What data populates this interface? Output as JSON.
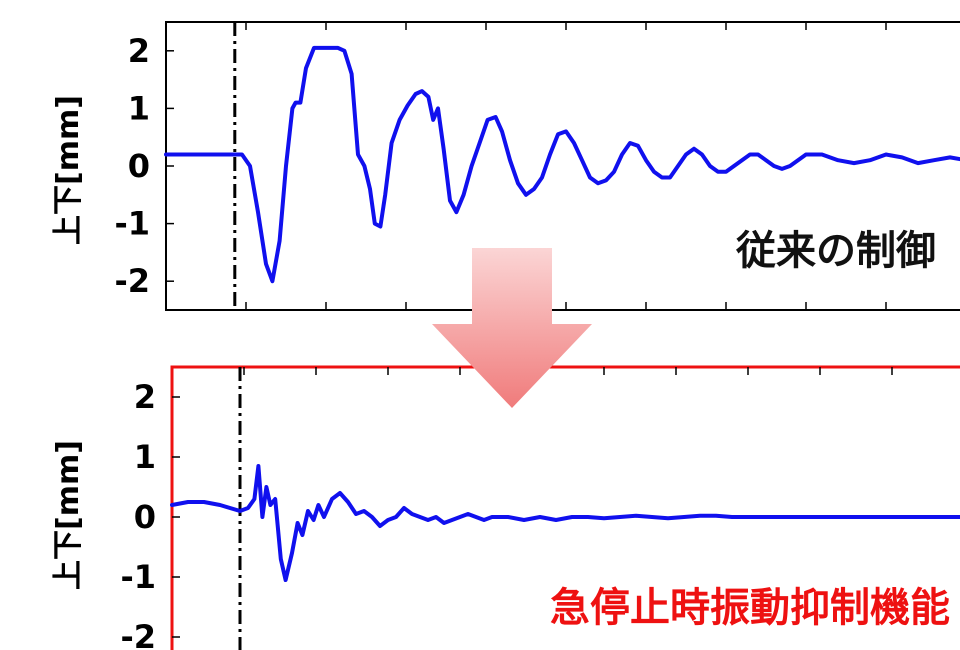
{
  "colors": {
    "series": "#1010ee",
    "axis": "#000000",
    "highlight_frame": "#ee1111",
    "caption_top": "#111111",
    "caption_bottom": "#ee1111",
    "arrow_top": "#fbd5d5",
    "arrow_bottom": "#f07b7b"
  },
  "arrow": {
    "icon": "down-arrow-icon",
    "direction": "down"
  },
  "chart_data": [
    {
      "type": "line",
      "title": "",
      "caption": "従来の制御",
      "ylabel": "上下[mm]",
      "xlabel": "",
      "ylim": [
        -2.5,
        2.5
      ],
      "xlim": [
        0,
        100
      ],
      "yticks": [
        "2",
        "1",
        "0",
        "-1",
        "-2"
      ],
      "ytick_values": [
        2,
        1,
        0,
        -1,
        -2
      ],
      "xtick_values": [
        10,
        20,
        30,
        40,
        50,
        60,
        70,
        80,
        90
      ],
      "event_marker_x": 8.6,
      "highlighted": false,
      "grid": false,
      "series": [
        {
          "x": [
            0,
            2,
            4,
            6,
            8.5,
            9.5,
            10.5,
            11.5,
            12.5,
            13.3,
            14.2,
            15,
            15.8,
            16.2,
            16.8,
            17.5,
            18.5,
            19.5,
            20.5,
            21.5,
            22.3,
            23.2,
            24.0,
            24.8,
            25.5,
            26.1,
            26.8,
            27.4,
            28.2,
            29.2,
            30.2,
            31.2,
            32.0,
            32.8,
            33.4,
            34.0,
            34.7,
            35.5,
            36.3,
            37.2,
            38.2,
            39.2,
            40.2,
            41.2,
            42.0,
            43.0,
            44.0,
            45.0,
            46.0,
            47.0,
            48.0,
            49.0,
            50.0,
            51.0,
            52.0,
            53.0,
            54.0,
            55.0,
            56.0,
            57.0,
            58.0,
            59.0,
            60.0,
            61.0,
            62.0,
            63.0,
            64.0,
            65.0,
            66.0,
            67.0,
            68.0,
            69.0,
            70.0,
            71.0,
            72.0,
            73.0,
            74.0,
            75.0,
            76.0,
            77.0,
            78.0,
            80.0,
            82.0,
            84.0,
            86.0,
            88.0,
            90.0,
            92.0,
            94.0,
            96.0,
            98.0,
            100.0
          ],
          "y": [
            0.2,
            0.2,
            0.2,
            0.2,
            0.2,
            0.2,
            0.0,
            -0.8,
            -1.7,
            -2.0,
            -1.3,
            0.0,
            1.0,
            1.1,
            1.1,
            1.7,
            2.05,
            2.05,
            2.05,
            2.05,
            2.0,
            1.6,
            0.2,
            0.0,
            -0.4,
            -1.0,
            -1.05,
            -0.5,
            0.4,
            0.8,
            1.05,
            1.25,
            1.3,
            1.2,
            0.8,
            1.0,
            0.3,
            -0.6,
            -0.8,
            -0.5,
            0.0,
            0.4,
            0.8,
            0.85,
            0.6,
            0.1,
            -0.3,
            -0.5,
            -0.4,
            -0.2,
            0.2,
            0.55,
            0.6,
            0.4,
            0.1,
            -0.2,
            -0.3,
            -0.25,
            -0.1,
            0.2,
            0.4,
            0.35,
            0.1,
            -0.1,
            -0.2,
            -0.2,
            0.0,
            0.2,
            0.3,
            0.2,
            0.0,
            -0.1,
            -0.1,
            0.0,
            0.1,
            0.2,
            0.2,
            0.1,
            0.0,
            -0.05,
            0.0,
            0.2,
            0.2,
            0.1,
            0.05,
            0.1,
            0.2,
            0.15,
            0.05,
            0.1,
            0.15,
            0.1
          ]
        }
      ]
    },
    {
      "type": "line",
      "title": "",
      "caption": "急停止時振動抑制機能",
      "ylabel": "上下[mm]",
      "xlabel": "",
      "ylim": [
        -2.5,
        2.5
      ],
      "xlim": [
        0,
        100
      ],
      "yticks": [
        "2",
        "1",
        "0",
        "-1",
        "-2"
      ],
      "ytick_values": [
        2,
        1,
        0,
        -1,
        -2
      ],
      "xtick_values": [
        9,
        18,
        27,
        36,
        45,
        54,
        63,
        72,
        81,
        90
      ],
      "event_marker_x": 8.5,
      "highlighted": true,
      "grid": false,
      "series": [
        {
          "x": [
            0,
            2,
            4,
            6,
            8.5,
            9.5,
            10.3,
            10.8,
            11.3,
            11.8,
            12.3,
            12.9,
            13.6,
            14.2,
            15.0,
            15.7,
            16.3,
            17.0,
            17.7,
            18.3,
            19.0,
            20.0,
            21.0,
            22.0,
            23.0,
            24.0,
            25.0,
            26.0,
            27.0,
            28.0,
            29.0,
            30.0,
            31.0,
            32.0,
            33.0,
            34.0,
            35.0,
            36.0,
            37.0,
            38.0,
            39.0,
            40.0,
            42.0,
            44.0,
            46.0,
            48.0,
            50.0,
            52.0,
            54.0,
            56.0,
            58.0,
            60.0,
            62.0,
            64.0,
            66.0,
            68.0,
            70.0,
            72.0,
            74.0,
            76.0,
            78.0,
            80.0,
            85.0,
            90.0,
            95.0,
            100.0
          ],
          "y": [
            0.2,
            0.25,
            0.25,
            0.2,
            0.1,
            0.15,
            0.3,
            0.85,
            0.0,
            0.5,
            0.2,
            0.3,
            -0.7,
            -1.05,
            -0.6,
            -0.1,
            -0.3,
            0.1,
            -0.05,
            0.2,
            0.0,
            0.3,
            0.4,
            0.25,
            0.05,
            0.1,
            0.0,
            -0.15,
            -0.05,
            0.0,
            0.15,
            0.05,
            0.0,
            -0.05,
            0.0,
            -0.1,
            -0.05,
            0.0,
            0.05,
            0.0,
            -0.05,
            0.0,
            0.0,
            -0.05,
            0.0,
            -0.05,
            0.0,
            0.0,
            -0.02,
            0.0,
            0.02,
            0.0,
            -0.02,
            0.0,
            0.02,
            0.02,
            0.0,
            0.0,
            0.0,
            0.0,
            0.0,
            0.0,
            0.0,
            0.0,
            0.0,
            0.0
          ]
        }
      ]
    }
  ]
}
